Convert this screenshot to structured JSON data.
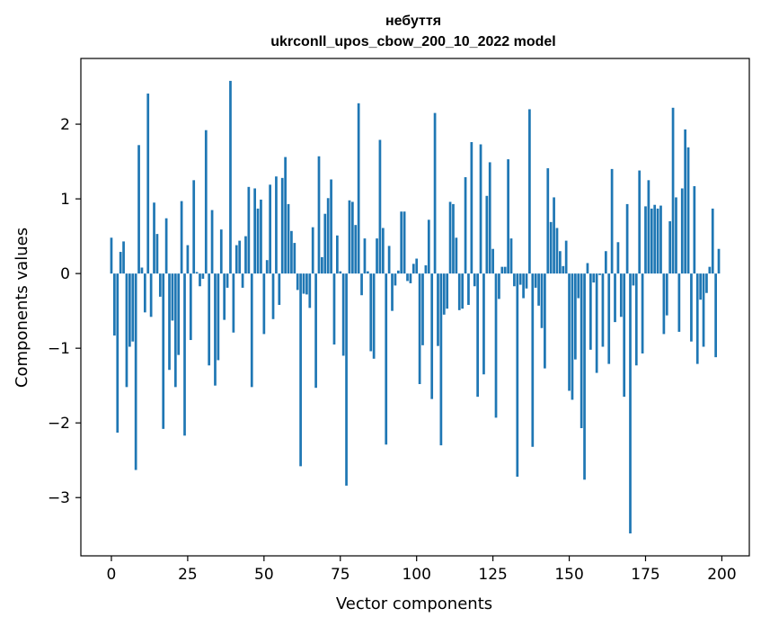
{
  "chart_data": {
    "type": "bar",
    "title": "небуття",
    "subtitle": "ukrconll_upos_cbow_200_10_2022 model",
    "xlabel": "Vector components",
    "ylabel": "Components values",
    "xlim": [
      -10,
      209
    ],
    "ylim": [
      -3.78,
      2.88
    ],
    "xticks": [
      0,
      25,
      50,
      75,
      100,
      125,
      150,
      175,
      200
    ],
    "xtick_labels": [
      "0",
      "25",
      "50",
      "75",
      "100",
      "125",
      "150",
      "175",
      "200"
    ],
    "yticks": [
      -3,
      -2,
      -1,
      0,
      1,
      2
    ],
    "ytick_labels": [
      "−3",
      "−2",
      "−1",
      "0",
      "1",
      "2"
    ],
    "bar_color": "#1f77b4",
    "grid": false,
    "legend": "none",
    "values": [
      0.48,
      -0.83,
      -2.13,
      0.29,
      0.43,
      -1.52,
      -0.98,
      -0.91,
      -2.63,
      1.72,
      0.08,
      -0.52,
      2.41,
      -0.58,
      0.95,
      0.53,
      -0.31,
      -2.08,
      0.74,
      -1.29,
      -0.63,
      -1.52,
      -1.09,
      0.97,
      -2.17,
      0.38,
      -0.89,
      1.25,
      0.02,
      -0.17,
      -0.07,
      1.92,
      -1.23,
      0.85,
      -1.5,
      -1.16,
      0.59,
      -0.62,
      -0.19,
      2.58,
      -0.79,
      0.38,
      0.44,
      -0.19,
      0.5,
      1.16,
      -1.52,
      1.14,
      0.87,
      0.99,
      -0.81,
      0.18,
      1.19,
      -0.61,
      1.3,
      -0.42,
      1.28,
      1.56,
      0.93,
      0.57,
      0.41,
      -0.22,
      -2.58,
      -0.27,
      -0.28,
      -0.46,
      0.62,
      -1.53,
      1.57,
      0.22,
      0.8,
      1.01,
      1.26,
      -0.95,
      0.51,
      0.03,
      -1.1,
      -2.84,
      0.98,
      0.96,
      0.65,
      2.28,
      -0.29,
      0.47,
      0.03,
      -1.04,
      -1.14,
      0.47,
      1.79,
      0.61,
      -2.29,
      0.37,
      -0.5,
      -0.16,
      0.04,
      0.83,
      0.83,
      -0.1,
      -0.13,
      0.13,
      0.2,
      -1.48,
      -0.96,
      0.11,
      0.72,
      -1.68,
      2.15,
      -0.97,
      -2.3,
      -0.55,
      -0.47,
      0.96,
      0.93,
      0.48,
      -0.49,
      -0.47,
      1.29,
      -0.42,
      1.76,
      -0.17,
      -1.65,
      1.73,
      -1.35,
      1.04,
      1.49,
      0.33,
      -1.93,
      -0.34,
      0.09,
      0.09,
      1.53,
      0.47,
      -0.17,
      -2.72,
      -0.15,
      -0.33,
      -0.2,
      2.2,
      -2.32,
      -0.19,
      -0.43,
      -0.73,
      -1.27,
      1.41,
      0.69,
      1.02,
      0.61,
      0.3,
      0.1,
      0.44,
      -1.57,
      -1.69,
      -1.15,
      -0.33,
      -2.07,
      -2.76,
      0.14,
      -1.02,
      -0.12,
      -1.33,
      -0.02,
      -0.98,
      0.3,
      -1.21,
      1.4,
      -0.65,
      0.42,
      -0.58,
      -1.65,
      0.93,
      -3.48,
      -0.16,
      -1.23,
      1.38,
      -1.07,
      0.9,
      1.25,
      0.87,
      0.92,
      0.87,
      0.91,
      -0.81,
      -0.56,
      0.7,
      2.22,
      1.02,
      -0.78,
      1.14,
      1.93,
      1.69,
      -0.91,
      1.17,
      -1.21,
      -0.35,
      -0.98,
      -0.26,
      0.09,
      0.87,
      -1.12,
      0.33
    ]
  }
}
